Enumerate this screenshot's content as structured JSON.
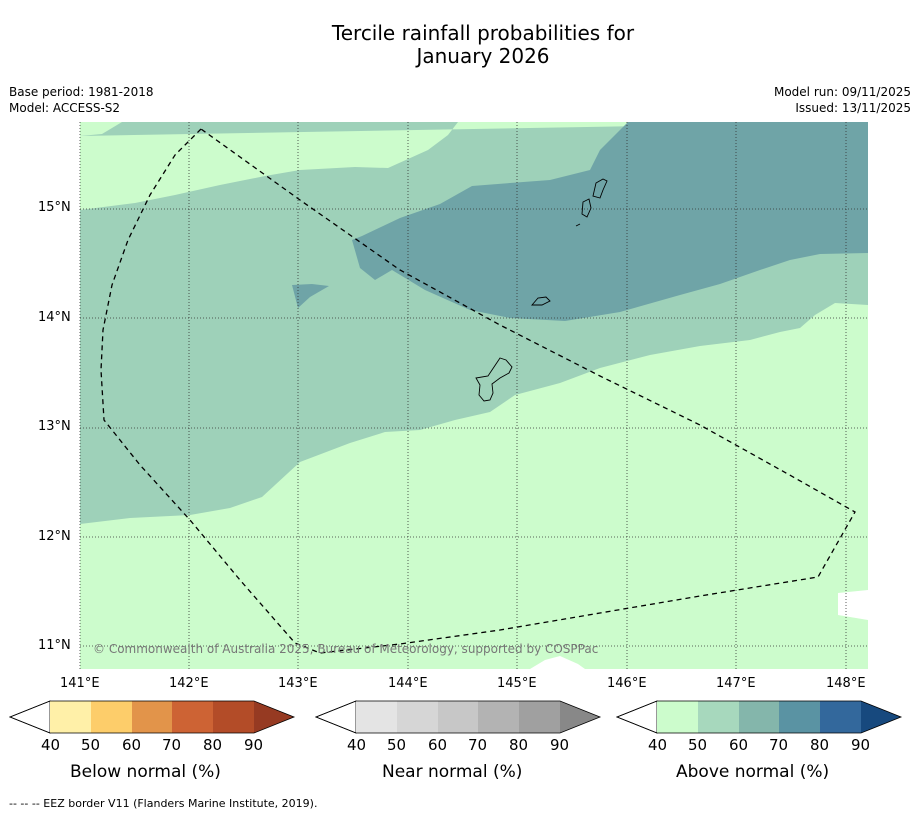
{
  "title_line1": "Tercile rainfall probabilities for",
  "title_line2": "January 2026",
  "meta_left": {
    "base_period": "Base period: 1981-2018",
    "model": "Model: ACCESS-S2"
  },
  "meta_right": {
    "model_run": "Model run: 09/11/2025",
    "issued": "Issued: 13/11/2025"
  },
  "map": {
    "lat_labels": [
      "15°N",
      "14°N",
      "13°N",
      "12°N",
      "11°N"
    ],
    "lon_labels": [
      "141°E",
      "142°E",
      "143°E",
      "144°E",
      "145°E",
      "146°E",
      "147°E",
      "148°E"
    ],
    "copyright": "© Commonwealth of Australia 2025, Bureau of Meteorology, supported by COSPPac",
    "shading_colors": {
      "above_40_50": "#ccfccc",
      "above_50_60": "#9ed1b9",
      "above_60_70": "#6fa4a7"
    }
  },
  "colorbars": [
    {
      "title": "Below normal (%)",
      "ticks": [
        "40",
        "50",
        "60",
        "70",
        "80",
        "90"
      ],
      "colors": [
        "#fff0a8",
        "#fdcd6a",
        "#e2944a",
        "#cd6334",
        "#b34c28",
        "#963a22"
      ]
    },
    {
      "title": "Near normal (%)",
      "ticks": [
        "40",
        "50",
        "60",
        "70",
        "80",
        "90"
      ],
      "colors": [
        "#e4e4e4",
        "#d6d6d6",
        "#c7c7c7",
        "#b3b3b3",
        "#a0a0a0",
        "#888888"
      ]
    },
    {
      "title": "Above normal (%)",
      "ticks": [
        "40",
        "50",
        "60",
        "70",
        "80",
        "90"
      ],
      "colors": [
        "#ccfccc",
        "#a7d8bd",
        "#84b6ab",
        "#5a93a3",
        "#33689c",
        "#17497e"
      ]
    }
  ],
  "footnote": "--  --  -- EEZ border V11 (Flanders Marine Institute, 2019)."
}
